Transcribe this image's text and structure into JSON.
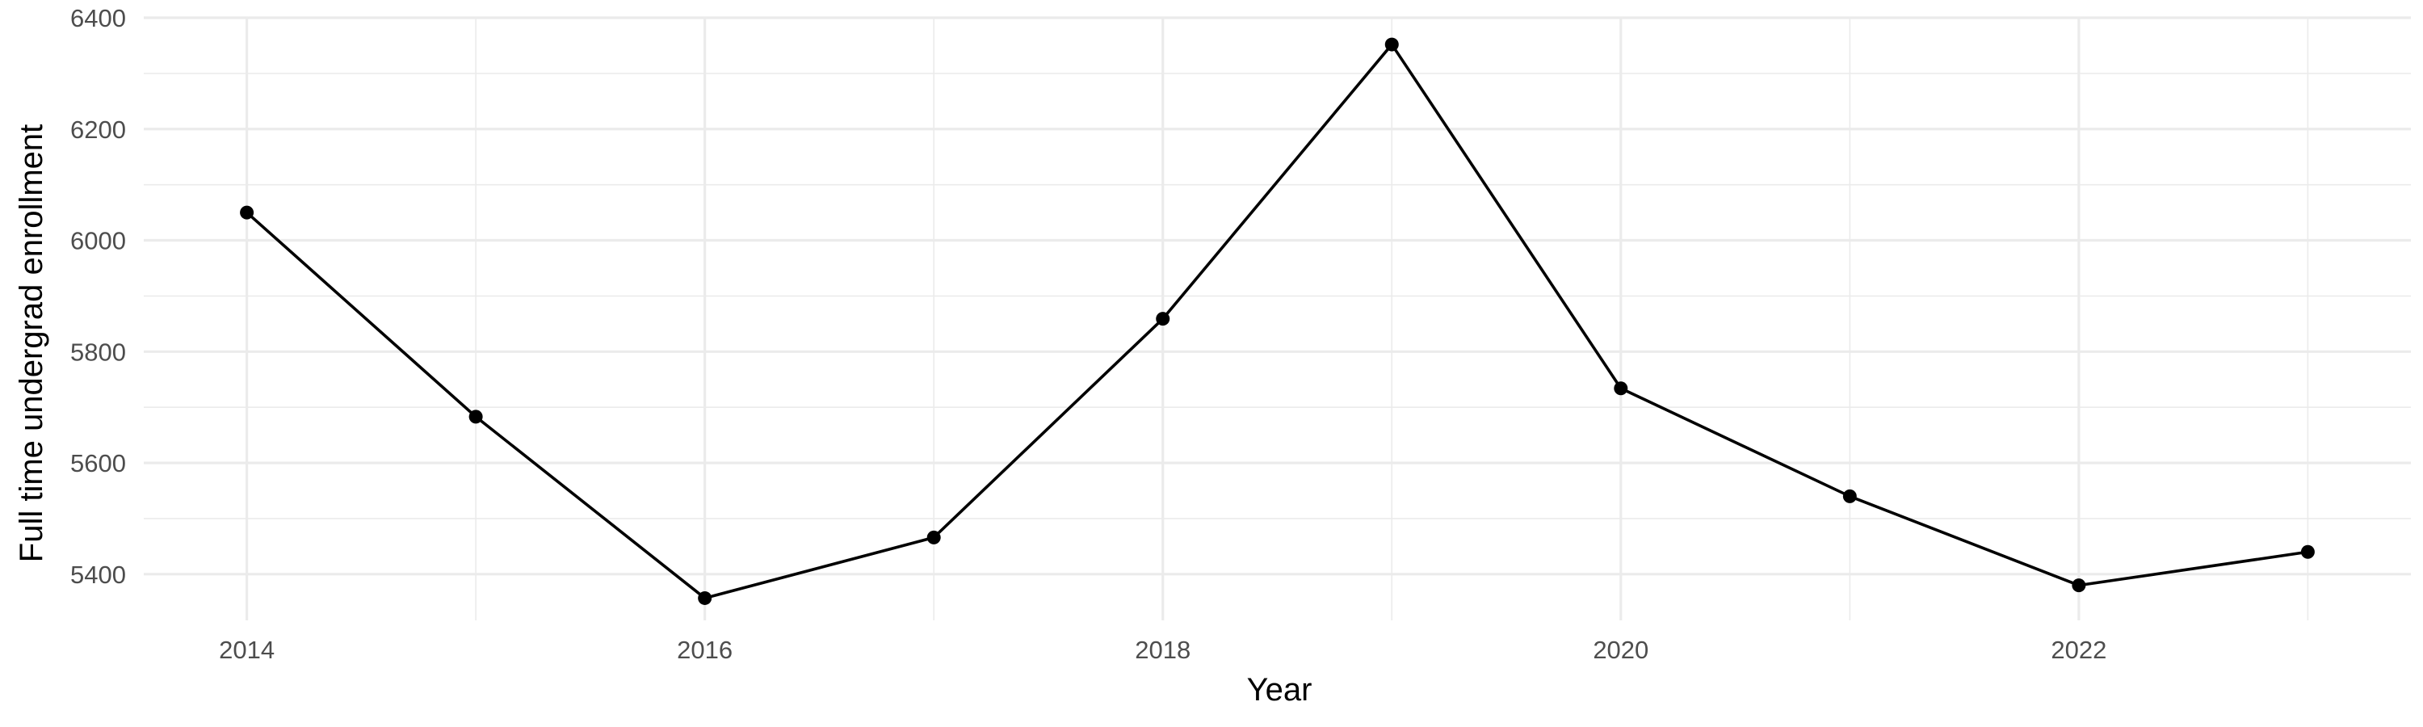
{
  "chart_data": {
    "type": "line",
    "title": "",
    "xlabel": "Year",
    "ylabel": "Full time undergrad enrollment",
    "x": [
      2014,
      2015,
      2016,
      2017,
      2018,
      2019,
      2020,
      2021,
      2022,
      2023
    ],
    "series": [
      {
        "values": [
          6050,
          5683,
          5357,
          5466,
          5859,
          6352,
          5734,
          5540,
          5380,
          5440
        ]
      }
    ],
    "xlim": [
      2013.55,
      2023.45
    ],
    "ylim": [
      5317,
      6400
    ],
    "x_ticks": [
      2014,
      2016,
      2018,
      2020,
      2022
    ],
    "x_tick_labels": [
      "2014",
      "2016",
      "2018",
      "2020",
      "2022"
    ],
    "y_ticks": [
      5400,
      5600,
      5800,
      6000,
      6200,
      6400
    ],
    "y_tick_labels": [
      "5400",
      "5600",
      "5800",
      "6000",
      "6200",
      "6400"
    ],
    "grid": true,
    "legend": "none",
    "line_color": "#000000",
    "point_color": "#000000",
    "gridline_color": "#ebebeb"
  }
}
